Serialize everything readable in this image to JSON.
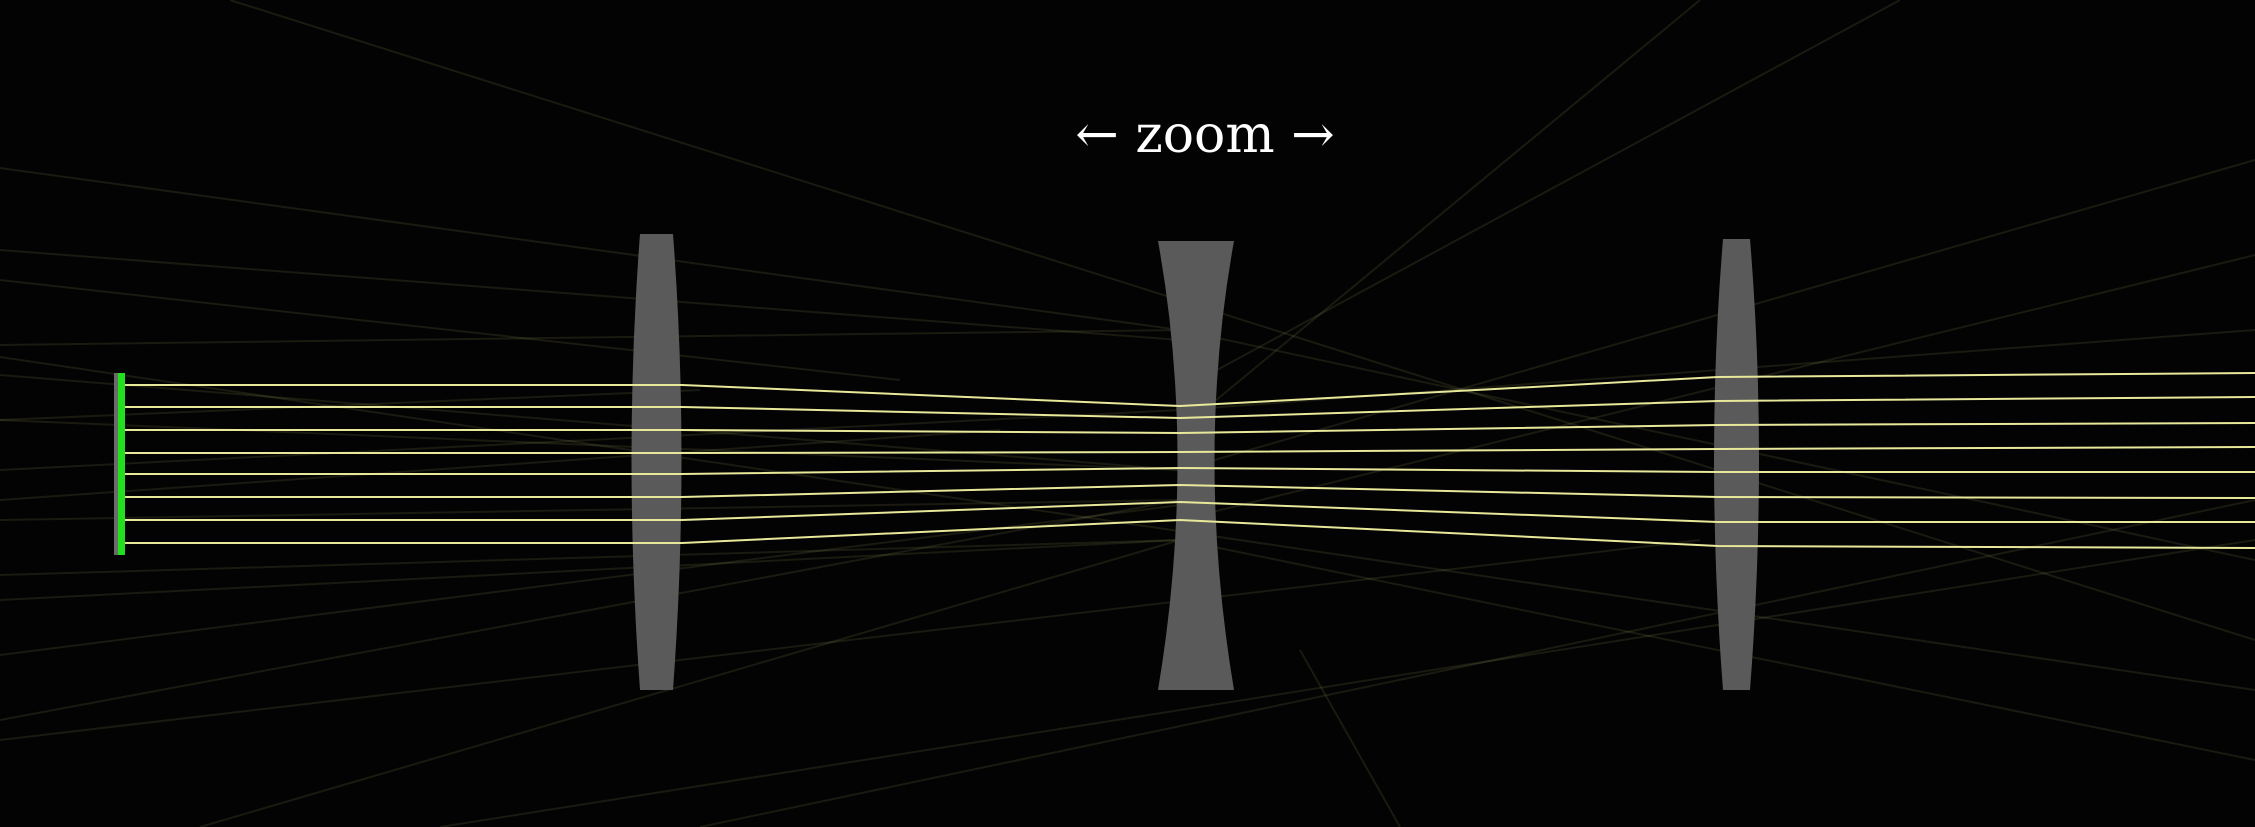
{
  "annotation": {
    "text": "← zoom →"
  },
  "colors": {
    "background": "#030303",
    "lens": "#5a5a5a",
    "source": "#22e01e",
    "ray": "#e8e89a",
    "stray_ray": "#c8c87a"
  },
  "elements": {
    "source": {
      "kind": "parallel beam source",
      "ray_count": 8
    },
    "lenses": [
      {
        "kind": "converging"
      },
      {
        "kind": "diverging"
      },
      {
        "kind": "converging"
      }
    ]
  }
}
